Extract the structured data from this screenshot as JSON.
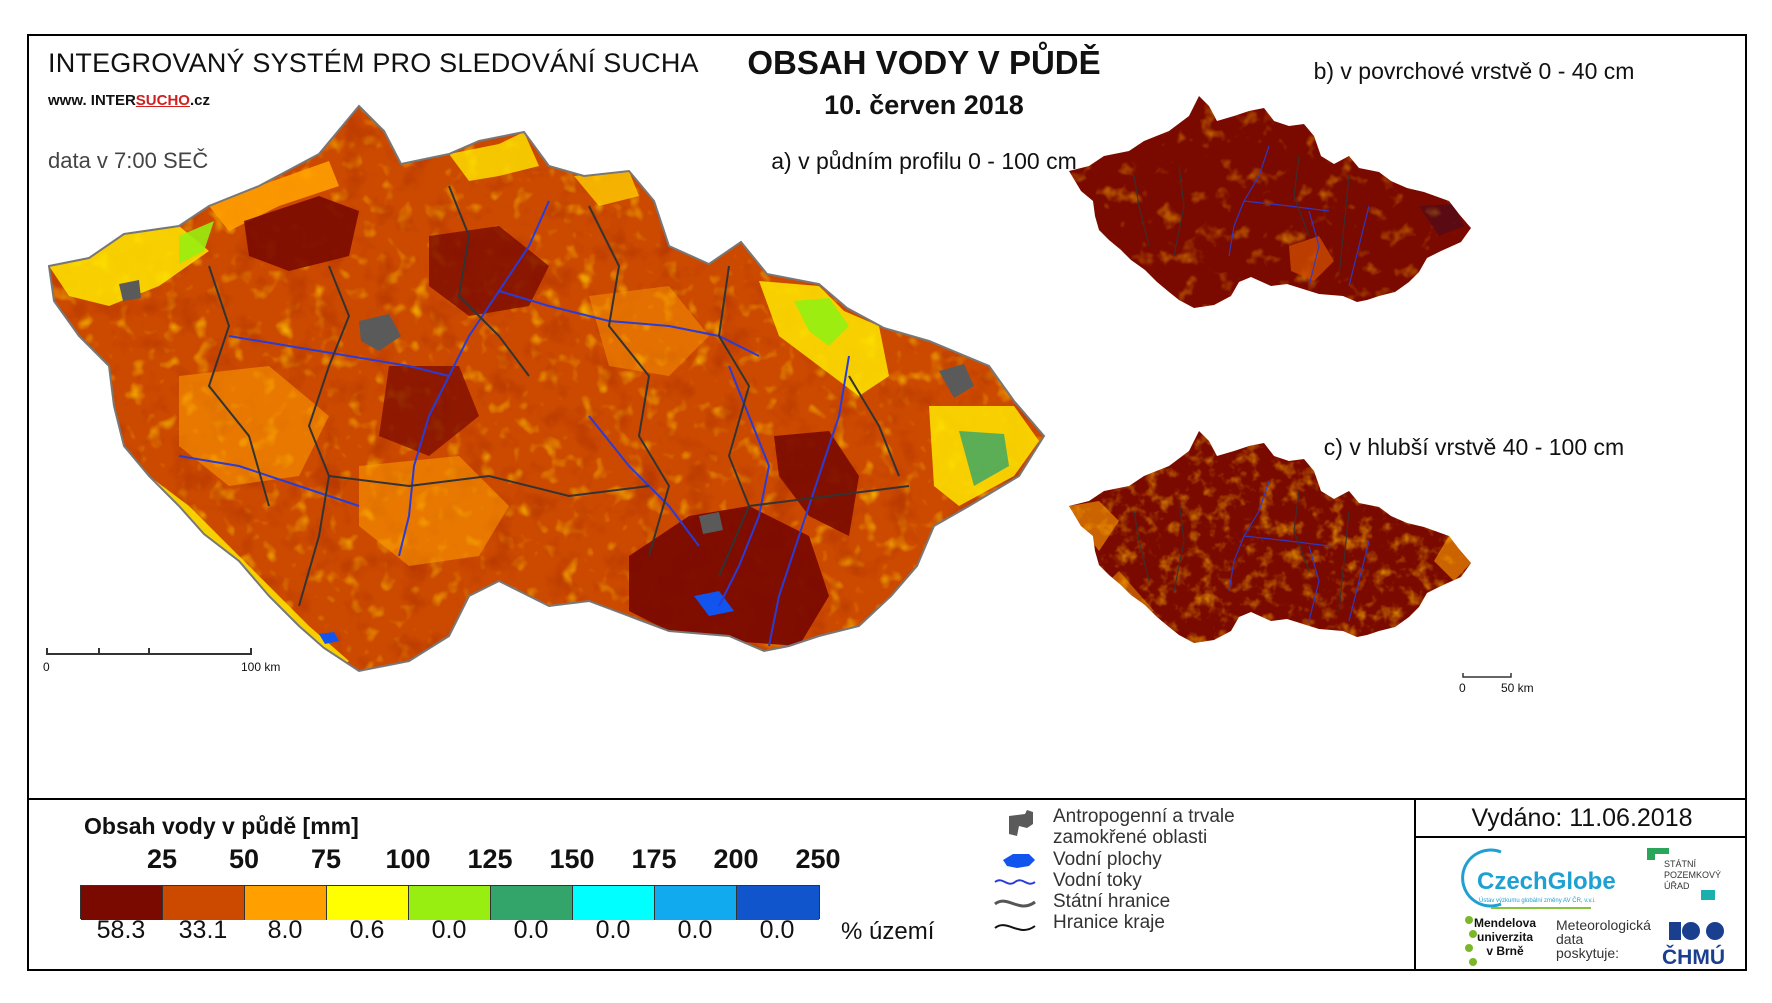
{
  "header": {
    "system_title": "INTEGROVANÝ SYSTÉM PRO SLEDOVÁNÍ SUCHA",
    "site_prefix": "www. INTER",
    "site_highlight": "SUCHO",
    "site_suffix": ".cz",
    "data_time": "data v 7:00 SEČ",
    "title": "OBSAH VODY V PŮDĚ",
    "date": "10. červen 2018"
  },
  "maps": {
    "a_label": "a) v půdním profilu 0 - 100 cm",
    "b_label": "b) v povrchové vrstvě 0 - 40 cm",
    "c_label": "c) v hlubší vrstvě 40 - 100 cm"
  },
  "scalebars": {
    "main": {
      "start": "0",
      "end": "100 km"
    },
    "small": {
      "start": "0",
      "end": "50 km"
    }
  },
  "legend": {
    "title": "Obsah vody v půdě  [mm]",
    "classes": [
      {
        "bound": "25",
        "color": "#7a0a00",
        "percent": "58.3"
      },
      {
        "bound": "50",
        "color": "#cc4a00",
        "percent": "33.1"
      },
      {
        "bound": "75",
        "color": "#ff9f00",
        "percent": "8.0"
      },
      {
        "bound": "100",
        "color": "#ffff00",
        "percent": "0.6"
      },
      {
        "bound": "125",
        "color": "#99ee11",
        "percent": "0.0"
      },
      {
        "bound": "150",
        "color": "#33a56a",
        "percent": "0.0"
      },
      {
        "bound": "175",
        "color": "#00ffff",
        "percent": "0.0"
      },
      {
        "bound": "200",
        "color": "#11aaee",
        "percent": "0.0"
      },
      {
        "bound": "250",
        "color": "#1155cc",
        "percent": "0.0"
      }
    ],
    "percent_unit": "% území"
  },
  "symbols": {
    "anthro_1": "Antropogenní a trvale",
    "anthro_2": "zamokřené oblasti",
    "water_bodies": "Vodní plochy",
    "rivers": "Vodní toky",
    "state_border": "Státní hranice",
    "region_border": "Hranice kraje"
  },
  "issued": "Vydáno: 11.06.2018",
  "logos": {
    "czechglobe": "CzechGlobe",
    "czechglobe_sub": "Ústav výzkumu globální změny AV ČR, v.v.i.",
    "spu_1": "STÁTNÍ",
    "spu_2": "POZEMKOVÝ",
    "spu_3": "ÚŘAD",
    "mendel_1": "Mendelova",
    "mendel_2": "univerzita",
    "mendel_3": "v Brně",
    "meteo_1": "Meteorologická",
    "meteo_2": "data",
    "meteo_3": "poskytuje:",
    "chmu": "ČHMÚ"
  },
  "colors": {
    "dark_red": "#7a0a00",
    "red_orange": "#cc4a00",
    "orange": "#ff9f00",
    "yellow": "#ffff00",
    "light_green": "#99ee11",
    "river_blue": "#2a3cd6",
    "anthro_gray": "#5a5a5a",
    "border_dark": "#333333"
  }
}
